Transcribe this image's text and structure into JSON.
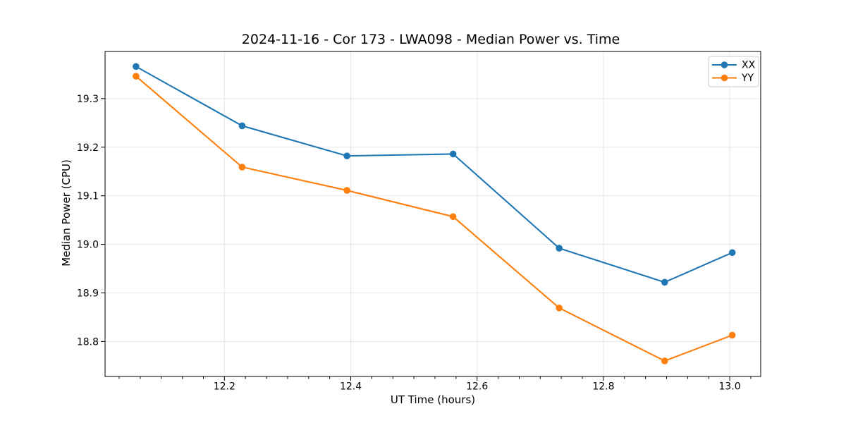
{
  "chart_data": {
    "type": "line",
    "title": "2024-11-16 - Cor 173 - LWA098 - Median Power vs. Time",
    "xlabel": "UT Time (hours)",
    "ylabel": "Median Power (CPU)",
    "xlim": [
      12.011,
      13.049
    ],
    "ylim": [
      18.728,
      19.397
    ],
    "x_ticks": [
      12.2,
      12.4,
      12.6,
      12.8,
      13.0
    ],
    "x_tick_labels": [
      "12.2",
      "12.4",
      "12.6",
      "12.8",
      "13.0"
    ],
    "x_minor_divisions": 6,
    "y_ticks": [
      18.8,
      18.9,
      19.0,
      19.1,
      19.2,
      19.3
    ],
    "y_tick_labels": [
      "18.8",
      "18.9",
      "19.0",
      "19.1",
      "19.2",
      "19.3"
    ],
    "grid": true,
    "grid_color": "#e6e6e6",
    "legend_position": "upper right",
    "x": [
      12.06,
      12.228,
      12.394,
      12.562,
      12.73,
      12.897,
      13.004
    ],
    "series": [
      {
        "name": "XX",
        "color": "#1f77b4",
        "marker": "circle",
        "values": [
          19.366,
          19.244,
          19.182,
          19.186,
          18.992,
          18.922,
          18.983
        ]
      },
      {
        "name": "YY",
        "color": "#ff7f0e",
        "marker": "circle",
        "values": [
          19.346,
          19.159,
          19.111,
          19.057,
          18.869,
          18.76,
          18.813
        ]
      }
    ]
  }
}
